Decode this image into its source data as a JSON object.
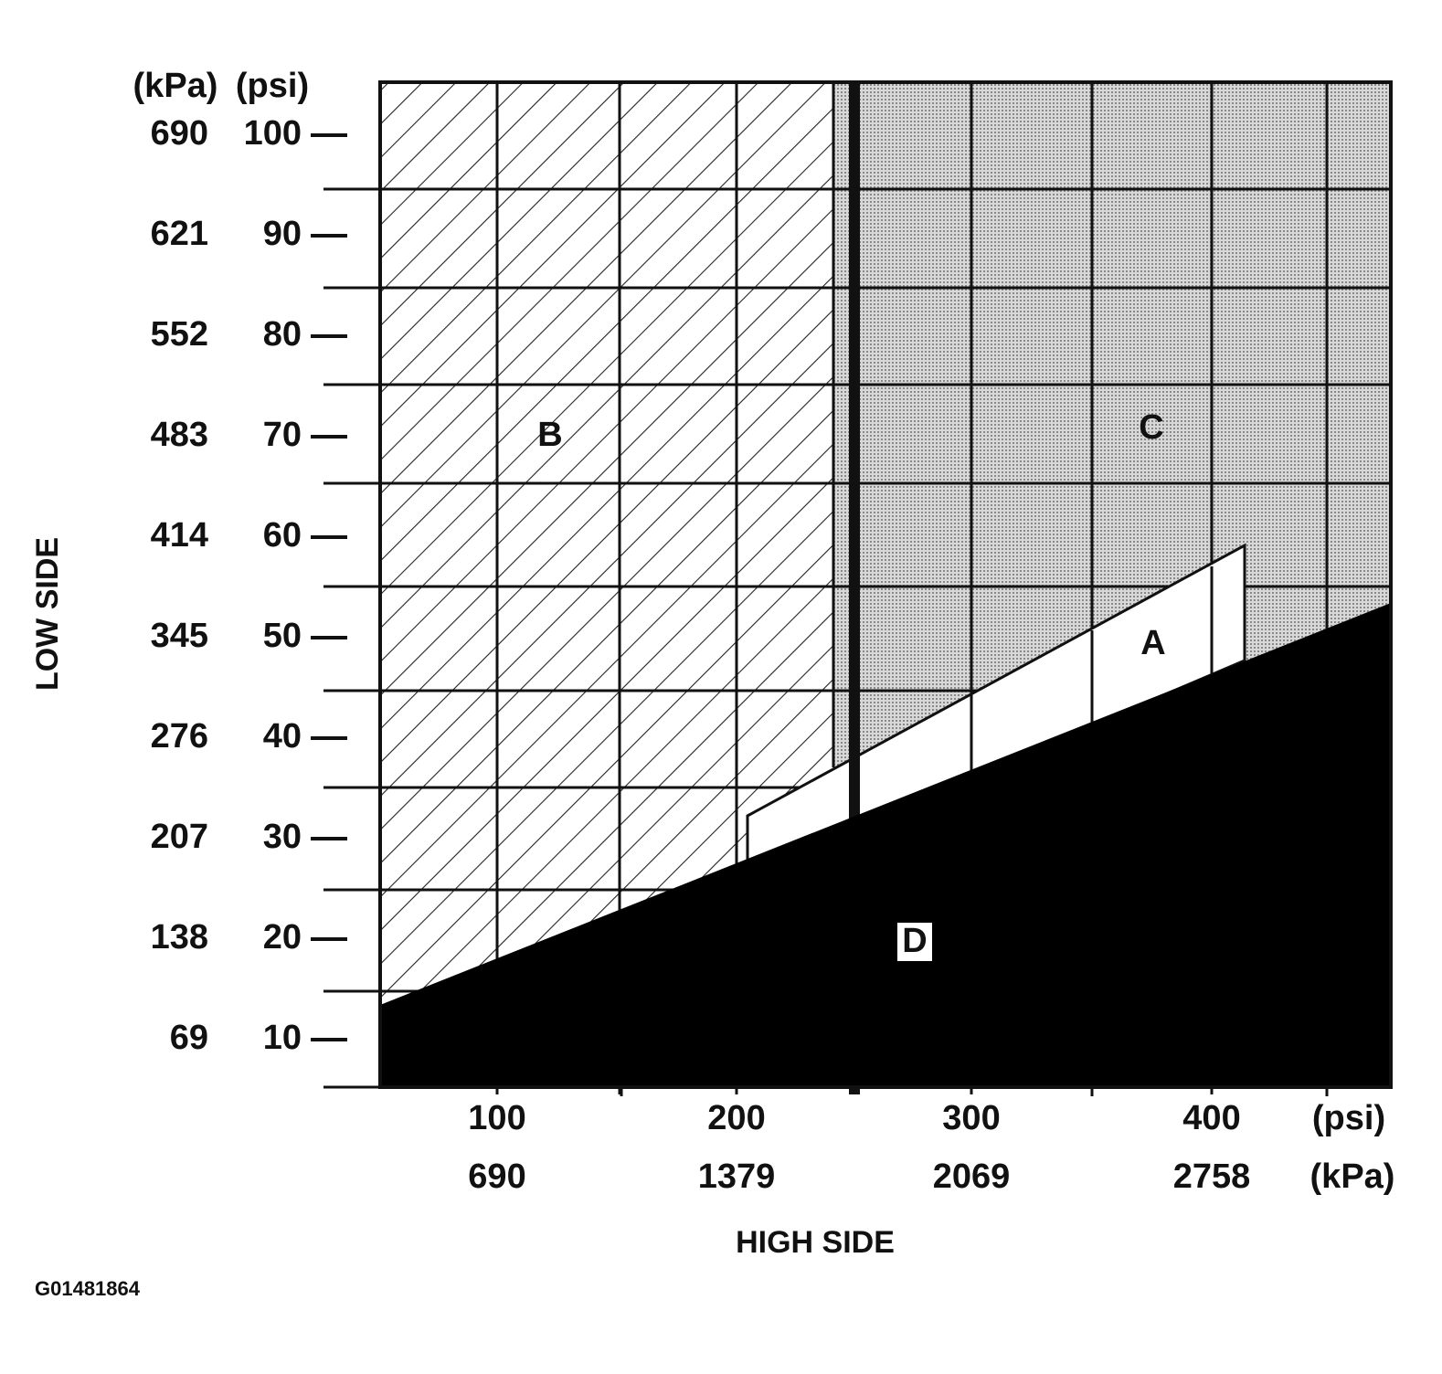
{
  "y_axis": {
    "title": "LOW SIDE",
    "kpa_header": "(kPa)",
    "psi_header": "(psi)",
    "rows": [
      {
        "kpa": "690",
        "psi": "100"
      },
      {
        "kpa": "621",
        "psi": "90"
      },
      {
        "kpa": "552",
        "psi": "80"
      },
      {
        "kpa": "483",
        "psi": "70"
      },
      {
        "kpa": "414",
        "psi": "60"
      },
      {
        "kpa": "345",
        "psi": "50"
      },
      {
        "kpa": "276",
        "psi": "40"
      },
      {
        "kpa": "207",
        "psi": "30"
      },
      {
        "kpa": "138",
        "psi": "20"
      },
      {
        "kpa": "69",
        "psi": "10"
      }
    ]
  },
  "x_axis": {
    "title": "HIGH SIDE",
    "psi_unit": "(psi)",
    "kpa_unit": "(kPa)",
    "columns": [
      {
        "psi": "100",
        "kpa": "690"
      },
      {
        "psi": "200",
        "kpa": "1379"
      },
      {
        "psi": "300",
        "kpa": "2069"
      },
      {
        "psi": "400",
        "kpa": "2758"
      }
    ]
  },
  "regions": {
    "a": "A",
    "b": "B",
    "c": "C",
    "d": "D"
  },
  "figure_id": "G01481864"
}
